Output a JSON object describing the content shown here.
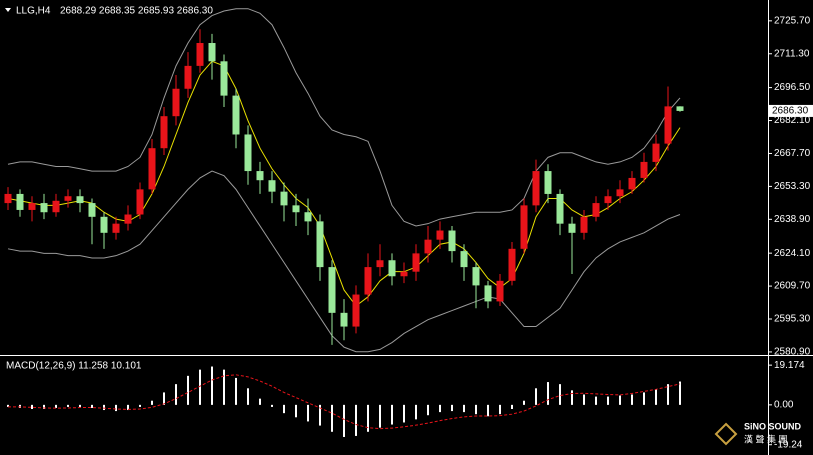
{
  "chart_data": [
    {
      "type": "candlestick",
      "title": "LLG,H4",
      "header": "2688.29 2688.35 2685.93 2686.30",
      "open": [
        2646,
        2650,
        2643,
        2646,
        2642,
        2647,
        2649,
        2646,
        2640,
        2633,
        2637,
        2641,
        2652,
        2670,
        2684,
        2696,
        2706,
        2716,
        2708,
        2693,
        2676,
        2660,
        2656,
        2651,
        2645,
        2642,
        2638,
        2618,
        2598,
        2592,
        2606,
        2618,
        2621,
        2614,
        2616,
        2624,
        2630,
        2634,
        2625,
        2618,
        2610,
        2603,
        2612,
        2626,
        2645,
        2660,
        2650,
        2637,
        2633,
        2640,
        2646,
        2649,
        2652,
        2657,
        2664,
        2672,
        2688.29
      ],
      "high": [
        2653,
        2652,
        2649,
        2650,
        2650,
        2652,
        2652,
        2648,
        2642,
        2640,
        2645,
        2655,
        2674,
        2688,
        2702,
        2712,
        2722,
        2720,
        2711,
        2696,
        2680,
        2664,
        2660,
        2655,
        2650,
        2648,
        2641,
        2621,
        2604,
        2610,
        2624,
        2628,
        2624,
        2620,
        2628,
        2636,
        2638,
        2636,
        2628,
        2620,
        2612,
        2615,
        2629,
        2648,
        2665,
        2663,
        2652,
        2640,
        2643,
        2649,
        2652,
        2656,
        2660,
        2668,
        2676,
        2697,
        2688.35
      ],
      "low": [
        2643,
        2640,
        2638,
        2639,
        2640,
        2644,
        2642,
        2628,
        2626,
        2630,
        2634,
        2639,
        2650,
        2667,
        2680,
        2692,
        2703,
        2700,
        2688,
        2670,
        2654,
        2650,
        2646,
        2638,
        2636,
        2632,
        2612,
        2584,
        2586,
        2589,
        2603,
        2614,
        2610,
        2611,
        2612,
        2620,
        2626,
        2620,
        2612,
        2600,
        2600,
        2601,
        2610,
        2624,
        2642,
        2646,
        2632,
        2615,
        2630,
        2638,
        2643,
        2646,
        2650,
        2655,
        2660,
        2669,
        2685.93
      ],
      "close": [
        2650,
        2643,
        2646,
        2642,
        2647,
        2649,
        2646,
        2640,
        2633,
        2637,
        2641,
        2652,
        2670,
        2684,
        2696,
        2706,
        2716,
        2708,
        2693,
        2676,
        2660,
        2656,
        2651,
        2645,
        2642,
        2638,
        2618,
        2598,
        2592,
        2606,
        2618,
        2621,
        2614,
        2616,
        2624,
        2630,
        2634,
        2625,
        2618,
        2610,
        2603,
        2612,
        2626,
        2645,
        2660,
        2650,
        2637,
        2633,
        2640,
        2646,
        2649,
        2652,
        2657,
        2664,
        2672,
        2688.29,
        2686.3
      ],
      "up_color": "#e8141a",
      "down_color": "#9ae89a",
      "series": [
        {
          "color": "#9a9a9a",
          "values": [
            2663,
            2664,
            2664,
            2663,
            2662,
            2662,
            2661,
            2660,
            2660,
            2660,
            2662,
            2666,
            2676,
            2692,
            2706,
            2716,
            2724,
            2728,
            2730,
            2731,
            2731,
            2729,
            2724,
            2714,
            2703,
            2694,
            2684,
            2678,
            2676,
            2675,
            2673,
            2660,
            2645,
            2638,
            2636,
            2637,
            2639,
            2640,
            2641,
            2642,
            2642,
            2642,
            2643,
            2648,
            2660,
            2666,
            2668,
            2668,
            2666,
            2664,
            2663,
            2664,
            2666,
            2670,
            2677,
            2686,
            2692
          ]
        },
        {
          "color": "#9a9a9a",
          "values": [
            2626,
            2625,
            2625,
            2624,
            2624,
            2623,
            2623,
            2622,
            2622,
            2623,
            2625,
            2628,
            2634,
            2640,
            2646,
            2652,
            2657,
            2660,
            2658,
            2652,
            2644,
            2636,
            2628,
            2620,
            2612,
            2604,
            2596,
            2588,
            2583,
            2581,
            2581,
            2582,
            2585,
            2589,
            2592,
            2595,
            2597,
            2599,
            2601,
            2603,
            2605,
            2604,
            2598,
            2592,
            2592,
            2596,
            2600,
            2608,
            2616,
            2622,
            2626,
            2629,
            2631,
            2633,
            2636,
            2639,
            2641
          ]
        },
        {
          "color": "#e8e000",
          "values": [
            2648,
            2647,
            2646,
            2645,
            2645,
            2646,
            2647,
            2646,
            2642,
            2639,
            2638,
            2641,
            2650,
            2662,
            2676,
            2690,
            2702,
            2708,
            2706,
            2696,
            2682,
            2670,
            2661,
            2654,
            2648,
            2644,
            2636,
            2622,
            2608,
            2601,
            2605,
            2612,
            2616,
            2616,
            2618,
            2623,
            2628,
            2629,
            2626,
            2620,
            2613,
            2609,
            2613,
            2624,
            2640,
            2648,
            2648,
            2643,
            2640,
            2641,
            2644,
            2648,
            2651,
            2656,
            2662,
            2671,
            2679
          ]
        }
      ],
      "ylim": [
        2580.0,
        2733.5
      ],
      "yticks": [
        {
          "value": 2725.7,
          "label": "2725.70"
        },
        {
          "value": 2711.3,
          "label": "2711.30"
        },
        {
          "value": 2696.5,
          "label": "2696.50"
        },
        {
          "value": 2682.1,
          "label": "2682.10"
        },
        {
          "value": 2667.7,
          "label": "2667.70"
        },
        {
          "value": 2653.3,
          "label": "2653.30"
        },
        {
          "value": 2638.9,
          "label": "2638.90"
        },
        {
          "value": 2624.1,
          "label": "2624.10"
        },
        {
          "value": 2609.7,
          "label": "2609.70"
        },
        {
          "value": 2595.3,
          "label": "2595.30"
        },
        {
          "value": 2580.9,
          "label": "2580.90"
        }
      ],
      "last_price": {
        "value": 2686.3,
        "label": "2686.30"
      }
    },
    {
      "type": "macd",
      "title": "MACD(12,26,9) 11.258 10.101",
      "hist": {
        "color": "#ffffff",
        "values": [
          -1,
          -1.5,
          -2,
          -2,
          -1.5,
          -1,
          -1,
          -1.5,
          -2.5,
          -3,
          -2.5,
          -1,
          2,
          6,
          10,
          14,
          17,
          18.5,
          17,
          13,
          8,
          3,
          -1,
          -4,
          -6,
          -8,
          -10,
          -13,
          -15.5,
          -15,
          -13,
          -11,
          -9.5,
          -8.5,
          -7,
          -5,
          -3.5,
          -3,
          -3.5,
          -4.5,
          -5.5,
          -4.5,
          -2,
          2,
          8,
          11,
          10,
          7,
          5,
          4,
          4,
          4.5,
          5,
          6,
          7.5,
          10,
          11.258
        ]
      },
      "signal": {
        "color": "#e8141a",
        "values": [
          -1,
          -1,
          -1.2,
          -1.5,
          -1.6,
          -1.5,
          -1.3,
          -1.3,
          -1.6,
          -2,
          -2.2,
          -2,
          -1.2,
          0.5,
          3,
          6,
          9,
          12,
          14,
          14.5,
          13.5,
          11.5,
          9,
          6,
          3.5,
          1,
          -1.5,
          -4,
          -7,
          -9.5,
          -11,
          -11.5,
          -11.2,
          -10.6,
          -9.8,
          -8.8,
          -7.6,
          -6.6,
          -5.8,
          -5.4,
          -5.4,
          -5.2,
          -4.5,
          -3,
          -0.5,
          2.5,
          4.5,
          5.5,
          5.6,
          5.3,
          5,
          4.8,
          5.5,
          6.5,
          7.5,
          8.8,
          10.101
        ]
      },
      "ylim": [
        -24.2,
        23.1
      ],
      "yticks": [
        19.174,
        {
          "value": 0,
          "label": "0.00"
        },
        -19.24
      ]
    }
  ],
  "watermark": {
    "name": "SiNO SOUND",
    "sub": "漢 聲 集 團"
  }
}
